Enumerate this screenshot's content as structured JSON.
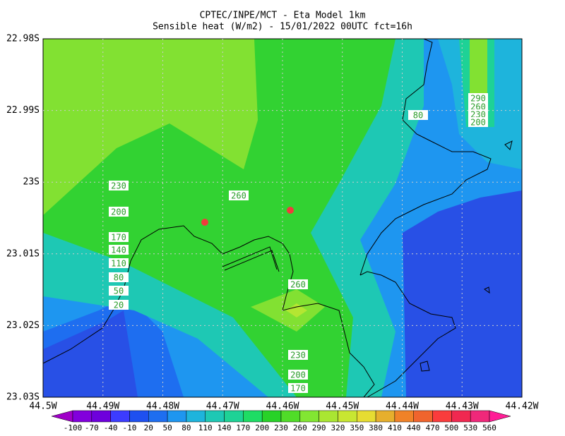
{
  "header": {
    "title": "CPTEC/INPE/MCT -  Eta Model 1km",
    "subtitle": "Sensible heat (W/m2) - 15/01/2022 00UTC fct=16h"
  },
  "axes": {
    "y_labels": [
      "22.98S",
      "22.99S",
      "23S",
      "23.01S",
      "23.02S",
      "23.03S"
    ],
    "x_labels": [
      "44.5W",
      "44.49W",
      "44.48W",
      "44.47W",
      "44.46W",
      "44.45W",
      "44.44W",
      "44.43W",
      "44.42W"
    ]
  },
  "colorbar": {
    "labels": [
      -100,
      -70,
      -40,
      -10,
      20,
      50,
      80,
      110,
      140,
      170,
      200,
      230,
      260,
      290,
      320,
      350,
      380,
      410,
      440,
      470,
      500,
      530,
      560
    ]
  },
  "contour_labels": [
    230,
    200,
    170,
    140,
    110,
    80,
    50,
    20,
    260,
    80,
    290,
    260,
    230,
    200,
    260,
    230,
    200,
    170
  ]
}
